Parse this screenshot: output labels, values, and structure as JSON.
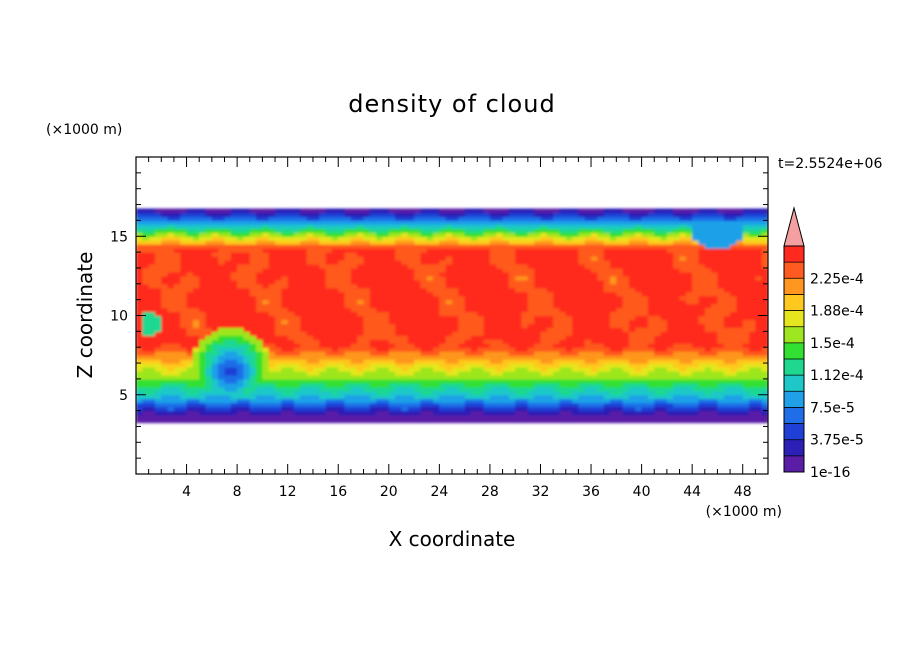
{
  "chart_data": {
    "type": "heatmap",
    "title": "density of cloud",
    "xlabel": "X coordinate",
    "ylabel": "Z coordinate",
    "x_unit": "(×1000 m)",
    "y_unit": "(×1000 m)",
    "time_label": "t=2.5524e+06",
    "xlim": [
      0,
      50
    ],
    "ylim": [
      0,
      20
    ],
    "x_ticks": [
      4,
      8,
      12,
      16,
      20,
      24,
      28,
      32,
      36,
      40,
      44,
      48
    ],
    "y_ticks": [
      5,
      10,
      15
    ],
    "colorbar": {
      "tick_labels": [
        "1e-16",
        "3.75e-5",
        "7.5e-5",
        "1.12e-4",
        "1.5e-4",
        "1.88e-4",
        "2.25e-4"
      ],
      "levels": [
        0,
        1.875e-05,
        3.75e-05,
        5.625e-05,
        7.5e-05,
        9.375e-05,
        0.0001125,
        0.00013125,
        0.00015,
        0.00016875,
        0.0001875,
        0.00020625,
        0.000225,
        0.00024375
      ],
      "colors": [
        "#5a1ea6",
        "#2b1fb5",
        "#1f3fd6",
        "#1f6ee8",
        "#1fa0e8",
        "#1fc8c8",
        "#1fd890",
        "#32e032",
        "#9ee61f",
        "#e6e61f",
        "#ffc81f",
        "#ff961f",
        "#ff5a1f",
        "#ff2a1f"
      ],
      "extend_color": "#f4a0a0"
    },
    "cloud_base_km": 3.5,
    "cloud_top_km": 16.8,
    "peak_density": 0.00024
  }
}
